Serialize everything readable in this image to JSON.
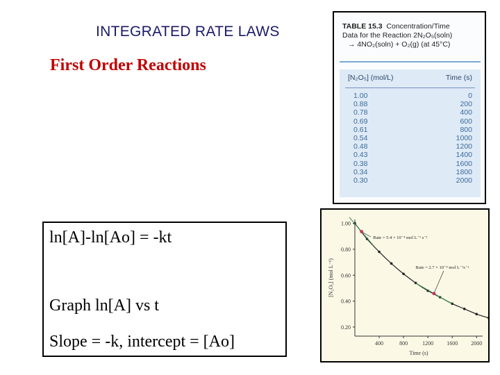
{
  "slide": {
    "title": "INTEGRATED RATE LAWS",
    "subtitle": "First Order Reactions",
    "equations": [
      "ln[A]-ln[Ao] = -kt",
      "Graph ln[A] vs t",
      "Slope = -k, intercept = [Ao]"
    ]
  },
  "table": {
    "number": "TABLE 15.3",
    "caption_1": "Concentration/Time",
    "caption_2": "Data for the Reaction 2N₂O₅(soln)",
    "caption_3": "→ 4NO₂(soln) + O₂(g) (at 45°C)",
    "col1": "[N₂O₅] (mol/L)",
    "col2": "Time (s)",
    "rows": [
      [
        "1.00",
        "0"
      ],
      [
        "0.88",
        "200"
      ],
      [
        "0.78",
        "400"
      ],
      [
        "0.69",
        "600"
      ],
      [
        "0.61",
        "800"
      ],
      [
        "0.54",
        "1000"
      ],
      [
        "0.48",
        "1200"
      ],
      [
        "0.43",
        "1400"
      ],
      [
        "0.38",
        "1600"
      ],
      [
        "0.34",
        "1800"
      ],
      [
        "0.30",
        "2000"
      ]
    ]
  },
  "chart_data": {
    "type": "line",
    "xlabel": "Time (s)",
    "ylabel": "[N₂O₅] (mol L⁻¹)",
    "xticks": [
      "400",
      "800",
      "1200",
      "1600",
      "2000"
    ],
    "yticks": [
      "1.00",
      "0.80",
      "0.60",
      "0.40",
      "0.20"
    ],
    "xlim": [
      0,
      2100
    ],
    "ylim": [
      0.13,
      1.03
    ],
    "x": [
      0,
      200,
      400,
      600,
      800,
      1000,
      1200,
      1400,
      1600,
      1800,
      2000,
      2200
    ],
    "y": [
      1.0,
      0.88,
      0.78,
      0.69,
      0.61,
      0.54,
      0.48,
      0.43,
      0.38,
      0.34,
      0.3,
      0.27
    ],
    "annotations": [
      {
        "text": "Rate = 5.4 × 10⁻⁴ mol L⁻¹ s⁻¹",
        "x": 150,
        "y": 0.91
      },
      {
        "text": "Rate = 2.7 × 10⁻⁴ mol L⁻¹s⁻¹",
        "x": 1300,
        "y": 0.45
      }
    ],
    "colors": {
      "curve": "#222222",
      "marker": "#c8325a",
      "tangent": "#3b8a5a",
      "background": "#fbf8e6"
    }
  }
}
